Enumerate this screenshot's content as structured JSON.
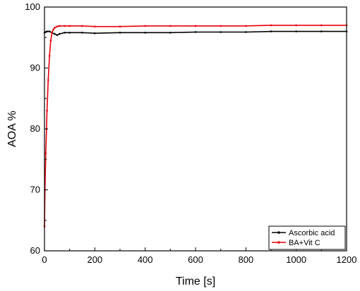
{
  "chart_data": {
    "type": "line",
    "title": "",
    "xlabel": "Time [s]",
    "ylabel": "AOA %",
    "xlim": [
      0,
      1200
    ],
    "ylim": [
      60,
      100
    ],
    "xticks": [
      0,
      200,
      400,
      600,
      800,
      1000,
      1200
    ],
    "yticks": [
      60,
      70,
      80,
      90,
      100
    ],
    "xtick_labels": [
      "0",
      "200",
      "400",
      "600",
      "800",
      "1000",
      "1200"
    ],
    "ytick_labels": [
      "60",
      "70",
      "80",
      "90",
      "100"
    ],
    "grid": false,
    "legend_position": "bottom-right",
    "series": [
      {
        "name": "Ascorbic acid",
        "color": "#000000",
        "x": [
          0,
          5,
          10,
          20,
          30,
          40,
          50,
          60,
          80,
          100,
          150,
          200,
          300,
          400,
          500,
          600,
          700,
          800,
          900,
          1000,
          1100,
          1200
        ],
        "y": [
          95.8,
          95.9,
          96.0,
          96.0,
          95.8,
          95.6,
          95.4,
          95.6,
          95.8,
          95.8,
          95.8,
          95.7,
          95.8,
          95.8,
          95.8,
          95.9,
          95.9,
          95.9,
          96.0,
          96.0,
          96.0,
          96.0
        ]
      },
      {
        "name": "BA+Vit C",
        "color": "#e8000b",
        "x": [
          0,
          2,
          5,
          8,
          10,
          15,
          20,
          25,
          30,
          35,
          40,
          50,
          60,
          80,
          100,
          150,
          200,
          300,
          400,
          500,
          600,
          700,
          800,
          900,
          1000,
          1100,
          1200
        ],
        "y": [
          64.0,
          70.0,
          76.0,
          80.0,
          83.0,
          88.0,
          92.0,
          94.5,
          95.8,
          96.3,
          96.6,
          96.8,
          96.9,
          96.9,
          96.9,
          96.9,
          96.8,
          96.8,
          96.9,
          96.9,
          96.9,
          96.9,
          96.9,
          97.0,
          97.0,
          97.0,
          97.0
        ]
      }
    ]
  }
}
